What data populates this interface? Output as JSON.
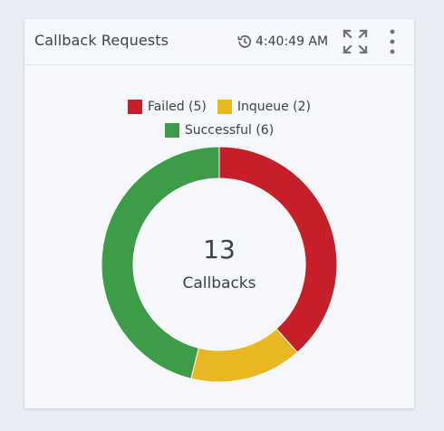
{
  "widget": {
    "title": "Callback Requests",
    "refresh_time": "4:40:49 AM",
    "icons": {
      "refresh": "history-icon",
      "expand": "expand-icon",
      "menu": "kebab-menu-icon"
    }
  },
  "legend": [
    {
      "label": "Failed (5)",
      "color": "#c5202a"
    },
    {
      "label": "Inqueue (2)",
      "color": "#e8b723"
    },
    {
      "label": "Successful (6)",
      "color": "#3e9b47"
    }
  ],
  "chart_data": {
    "type": "pie",
    "variant": "donut",
    "categories": [
      "Failed",
      "Inqueue",
      "Successful"
    ],
    "values": [
      5,
      2,
      6
    ],
    "colors": [
      "#c5202a",
      "#e8b723",
      "#3e9b47"
    ],
    "legend_position": "top-center",
    "center_value": "13",
    "center_label": "Callbacks"
  }
}
